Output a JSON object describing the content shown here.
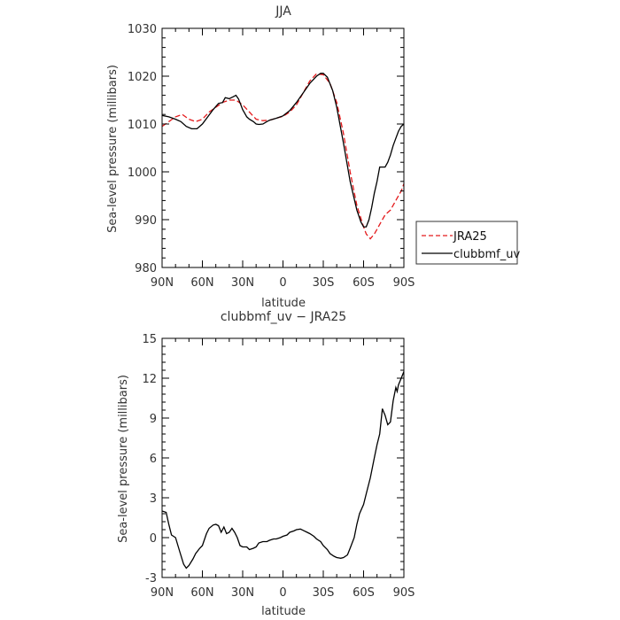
{
  "chart_data": [
    {
      "type": "line",
      "title": "JJA",
      "xlabel": "latitude",
      "ylabel": "Sea-level pressure (millibars)",
      "x_tick_labels": [
        "90N",
        "60N",
        "30N",
        "0",
        "30S",
        "60S",
        "90S"
      ],
      "x_tick_values": [
        -90,
        -60,
        -30,
        0,
        30,
        60,
        90
      ],
      "xlim": [
        -90,
        90
      ],
      "ylim": [
        980,
        1030
      ],
      "y_ticks": [
        980,
        990,
        1000,
        1010,
        1020,
        1030
      ],
      "legend": {
        "placement": "right",
        "entries": [
          "JRA25",
          "clubbmf_uv"
        ]
      },
      "series": [
        {
          "name": "JRA25",
          "color": "#e41a1c",
          "dash": "dashed",
          "x": [
            -90,
            -85,
            -80,
            -75,
            -70,
            -65,
            -60,
            -55,
            -50,
            -45,
            -40,
            -35,
            -30,
            -25,
            -20,
            -15,
            -10,
            -5,
            0,
            5,
            10,
            15,
            20,
            25,
            30,
            35,
            40,
            45,
            50,
            55,
            60,
            62,
            65,
            68,
            70,
            73,
            76,
            80,
            83,
            86,
            88,
            90
          ],
          "y": [
            1009.5,
            1010.5,
            1011.5,
            1012.0,
            1011.0,
            1010.5,
            1011.0,
            1012.5,
            1013.5,
            1014.5,
            1015.0,
            1015.0,
            1014.0,
            1012.5,
            1011.0,
            1010.7,
            1010.8,
            1011.2,
            1011.6,
            1012.5,
            1014.0,
            1016.5,
            1019.0,
            1020.5,
            1020.3,
            1018.5,
            1014.5,
            1008.0,
            1000.0,
            993.0,
            988.5,
            987.0,
            986.0,
            987.0,
            988.0,
            989.5,
            991.0,
            992.0,
            993.5,
            995.0,
            996.0,
            997.5
          ]
        },
        {
          "name": "clubbmf_uv",
          "color": "#000000",
          "dash": "solid",
          "x": [
            -90,
            -85,
            -80,
            -76,
            -72,
            -68,
            -64,
            -60,
            -56,
            -52,
            -48,
            -45,
            -43,
            -40,
            -37,
            -35,
            -33,
            -30,
            -27,
            -25,
            -22,
            -20,
            -18,
            -15,
            -12,
            -10,
            -5,
            0,
            5,
            10,
            15,
            20,
            25,
            28,
            30,
            33,
            37,
            40,
            45,
            50,
            55,
            58,
            60,
            62,
            64,
            66,
            68,
            70,
            72,
            74,
            76,
            78,
            80,
            82,
            84,
            86,
            88,
            90
          ],
          "y": [
            1011.8,
            1011.5,
            1011.0,
            1010.5,
            1009.5,
            1009.0,
            1009.0,
            1010.0,
            1011.5,
            1013.0,
            1014.3,
            1014.5,
            1015.5,
            1015.3,
            1015.7,
            1016.0,
            1015.2,
            1013.0,
            1011.5,
            1011.0,
            1010.5,
            1010.0,
            1009.9,
            1010.0,
            1010.5,
            1010.8,
            1011.2,
            1011.7,
            1012.8,
            1014.5,
            1016.5,
            1018.5,
            1020.0,
            1020.6,
            1020.6,
            1019.8,
            1017.0,
            1013.5,
            1006.0,
            998.0,
            992.0,
            989.5,
            988.5,
            988.5,
            990.0,
            992.5,
            995.5,
            998.0,
            1001.0,
            1001.0,
            1001.0,
            1002.0,
            1003.5,
            1005.5,
            1007.0,
            1008.5,
            1009.5,
            1010.0
          ]
        }
      ]
    },
    {
      "type": "line",
      "title": "clubbmf_uv − JRA25",
      "xlabel": "latitude",
      "ylabel": "Sea-level pressure (millibars)",
      "x_tick_labels": [
        "90N",
        "60N",
        "30N",
        "0",
        "30S",
        "60S",
        "90S"
      ],
      "x_tick_values": [
        -90,
        -60,
        -30,
        0,
        30,
        60,
        90
      ],
      "xlim": [
        -90,
        90
      ],
      "ylim": [
        -3,
        15
      ],
      "y_ticks": [
        -3,
        0,
        3,
        6,
        9,
        12,
        15
      ],
      "series": [
        {
          "color": "#000000",
          "dash": "solid",
          "x": [
            -90,
            -87,
            -85,
            -83,
            -80,
            -77,
            -74,
            -72,
            -70,
            -67,
            -65,
            -62,
            -60,
            -57,
            -55,
            -52,
            -50,
            -48,
            -46,
            -44,
            -42,
            -40,
            -38,
            -36,
            -34,
            -32,
            -30,
            -27,
            -25,
            -22,
            -20,
            -18,
            -15,
            -12,
            -10,
            -7,
            -5,
            -2,
            0,
            3,
            5,
            8,
            10,
            13,
            15,
            18,
            20,
            23,
            25,
            28,
            30,
            33,
            35,
            38,
            40,
            43,
            45,
            48,
            50,
            53,
            55,
            57,
            60,
            62,
            65,
            68,
            70,
            72,
            74,
            76,
            78,
            80,
            82,
            84,
            85,
            86,
            88,
            90
          ],
          "y": [
            2.0,
            1.9,
            1.0,
            0.2,
            0.0,
            -1.0,
            -2.0,
            -2.3,
            -2.1,
            -1.6,
            -1.2,
            -0.8,
            -0.6,
            0.3,
            0.7,
            0.95,
            1.0,
            0.9,
            0.4,
            0.8,
            0.3,
            0.4,
            0.7,
            0.4,
            0.0,
            -0.6,
            -0.7,
            -0.7,
            -0.9,
            -0.8,
            -0.7,
            -0.4,
            -0.3,
            -0.3,
            -0.2,
            -0.1,
            -0.1,
            0.0,
            0.1,
            0.2,
            0.4,
            0.5,
            0.6,
            0.65,
            0.55,
            0.4,
            0.3,
            0.1,
            -0.1,
            -0.3,
            -0.6,
            -0.9,
            -1.2,
            -1.4,
            -1.5,
            -1.55,
            -1.5,
            -1.3,
            -0.8,
            0.0,
            1.0,
            1.8,
            2.5,
            3.3,
            4.5,
            6.0,
            7.0,
            7.8,
            9.7,
            9.2,
            8.5,
            8.7,
            10.3,
            11.3,
            11.0,
            11.5,
            12.0,
            12.5
          ]
        }
      ]
    }
  ]
}
